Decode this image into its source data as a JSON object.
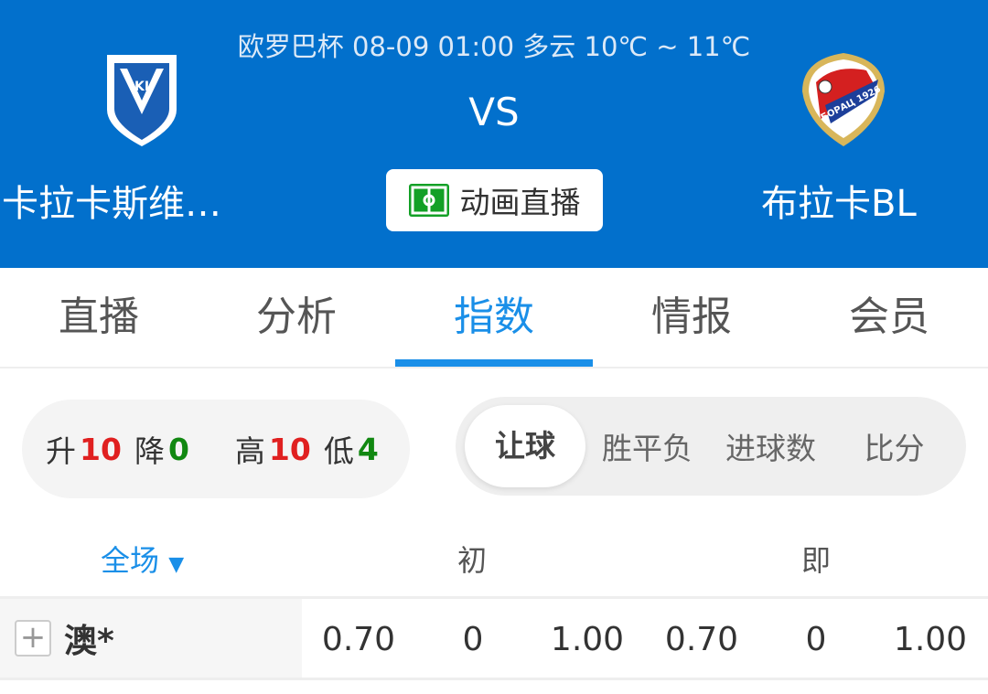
{
  "header": {
    "match_info": "欧罗巴杯 08-09 01:00 多云 10℃ ~ 11℃",
    "vs": "VS",
    "home_team": "卡拉卡斯维…",
    "away_team": "布拉卡BL",
    "home_logo_text": "KI",
    "away_logo_text": "БОРАЦ 1926",
    "animation_button": "动画直播",
    "colors": {
      "header_bg": "#0270cc",
      "pitch_icon": "#13a026"
    }
  },
  "tabs": [
    {
      "label": "直播"
    },
    {
      "label": "分析"
    },
    {
      "label": "指数",
      "active": true
    },
    {
      "label": "情报"
    },
    {
      "label": "会员"
    }
  ],
  "stats": {
    "up_label": "升",
    "up": "10",
    "down_label": "降",
    "down": "0",
    "high_label": "高",
    "high": "10",
    "low_label": "低",
    "low": "4"
  },
  "segments": [
    {
      "label": "让球",
      "active": true
    },
    {
      "label": "胜平负"
    },
    {
      "label": "进球数"
    },
    {
      "label": "比分"
    }
  ],
  "table": {
    "period": "全场",
    "col_initial": "初",
    "col_live": "即",
    "rows": [
      {
        "company": "澳*",
        "values": [
          "0.70",
          "0",
          "1.00",
          "0.70",
          "0",
          "1.00"
        ]
      }
    ]
  }
}
